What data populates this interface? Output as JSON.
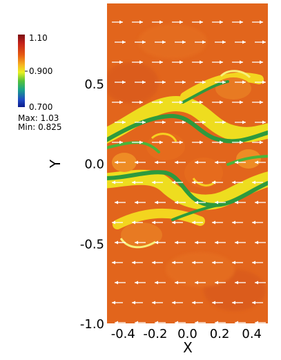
{
  "chart_data": {
    "type": "heatmap",
    "title": "",
    "xlabel": "X",
    "ylabel": "Y",
    "xlim": [
      -0.5,
      0.5
    ],
    "ylim": [
      -1.0,
      1.0
    ],
    "x_ticks": [
      -0.4,
      -0.2,
      0.0,
      0.2,
      0.4
    ],
    "x_tick_labels": [
      "-0.4",
      "-0.2",
      "0.0",
      "0.2",
      "0.4"
    ],
    "y_ticks": [
      0.5,
      0.0,
      -0.5,
      -1.0
    ],
    "y_tick_labels": [
      "0.5",
      "0.0",
      "-0.5",
      "-1.0"
    ],
    "colorbar": {
      "min": 0.7,
      "max": 1.1,
      "labels": [
        "1.10",
        "0.900",
        "0.700"
      ],
      "label_values": [
        1.1,
        0.9,
        0.7
      ],
      "colors": [
        "#7a0f12",
        "#c4221a",
        "#e65a12",
        "#f7b521",
        "#e9f021",
        "#55c23a",
        "#1aa38a",
        "#1f49c4",
        "#0c1b8a"
      ]
    },
    "stats": {
      "max_label": "Max: 1.03",
      "min_label": "Min: 0.825",
      "max": 1.03,
      "min": 0.825
    },
    "vectors": {
      "upper_direction": "right",
      "lower_direction": "left",
      "color": "#ffffff"
    },
    "background_color": "#e2651c",
    "band_colors": [
      "#f0f020",
      "#2d9a3e",
      "#f6b21e"
    ]
  }
}
